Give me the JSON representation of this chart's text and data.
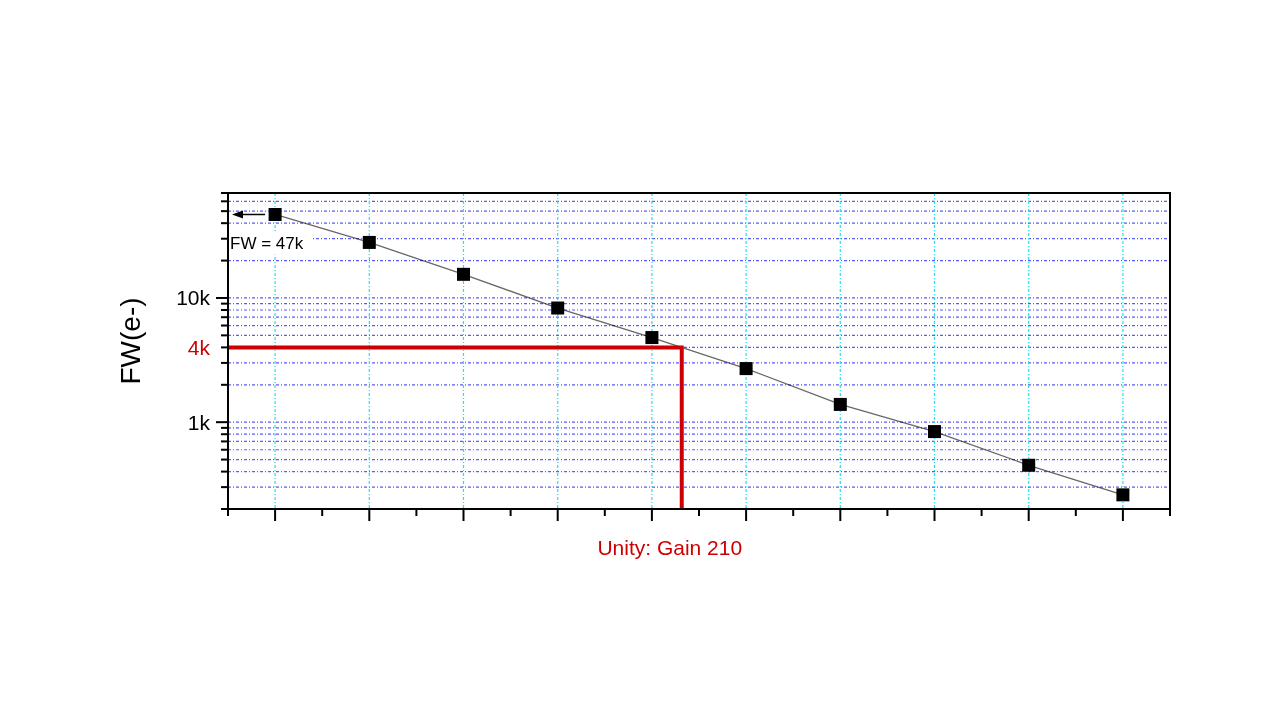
{
  "chart_data": {
    "type": "line",
    "ylabel": "FW(e-)",
    "categories": [
      null,
      null,
      null,
      null,
      null,
      null,
      null,
      null,
      null,
      null
    ],
    "series": [
      {
        "color": "#000000",
        "values": [
          47000,
          28000,
          15500,
          8300,
          4800,
          2700,
          1390,
          840,
          450,
          260
        ]
      }
    ],
    "log": "y",
    "ylim": [
      200,
      70000
    ],
    "yticks": [
      {
        "value": 200,
        "label": null
      },
      {
        "value": 300,
        "label": null
      },
      {
        "value": 400,
        "label": null
      },
      {
        "value": 500,
        "label": null
      },
      {
        "value": 600,
        "label": null
      },
      {
        "value": 700,
        "label": null
      },
      {
        "value": 800,
        "label": null
      },
      {
        "value": 900,
        "label": null
      },
      {
        "value": 1000,
        "label": "1k"
      },
      {
        "value": 2000,
        "label": null
      },
      {
        "value": 3000,
        "label": null
      },
      {
        "value": 4000,
        "label": null
      },
      {
        "value": 5000,
        "label": null
      },
      {
        "value": 6000,
        "label": null
      },
      {
        "value": 7000,
        "label": null
      },
      {
        "value": 8000,
        "label": null
      },
      {
        "value": 9000,
        "label": null
      },
      {
        "value": 10000,
        "label": "10k"
      },
      {
        "value": 20000,
        "label": null
      },
      {
        "value": 30000,
        "label": null
      },
      {
        "value": 40000,
        "label": null
      },
      {
        "value": 50000,
        "label": null
      },
      {
        "value": 60000,
        "label": null
      },
      {
        "value": 70000,
        "label": null
      }
    ],
    "tick_labels": "y",
    "grid": true,
    "marker": "square",
    "ref_lines": [
      {
        "axis": "y",
        "value": 4000,
        "label": "4k",
        "color": "#cc0000"
      }
    ],
    "annotations": [
      {
        "text": "FW = 47k",
        "y": 47000
      },
      "Unity: Gain 210"
    ]
  }
}
